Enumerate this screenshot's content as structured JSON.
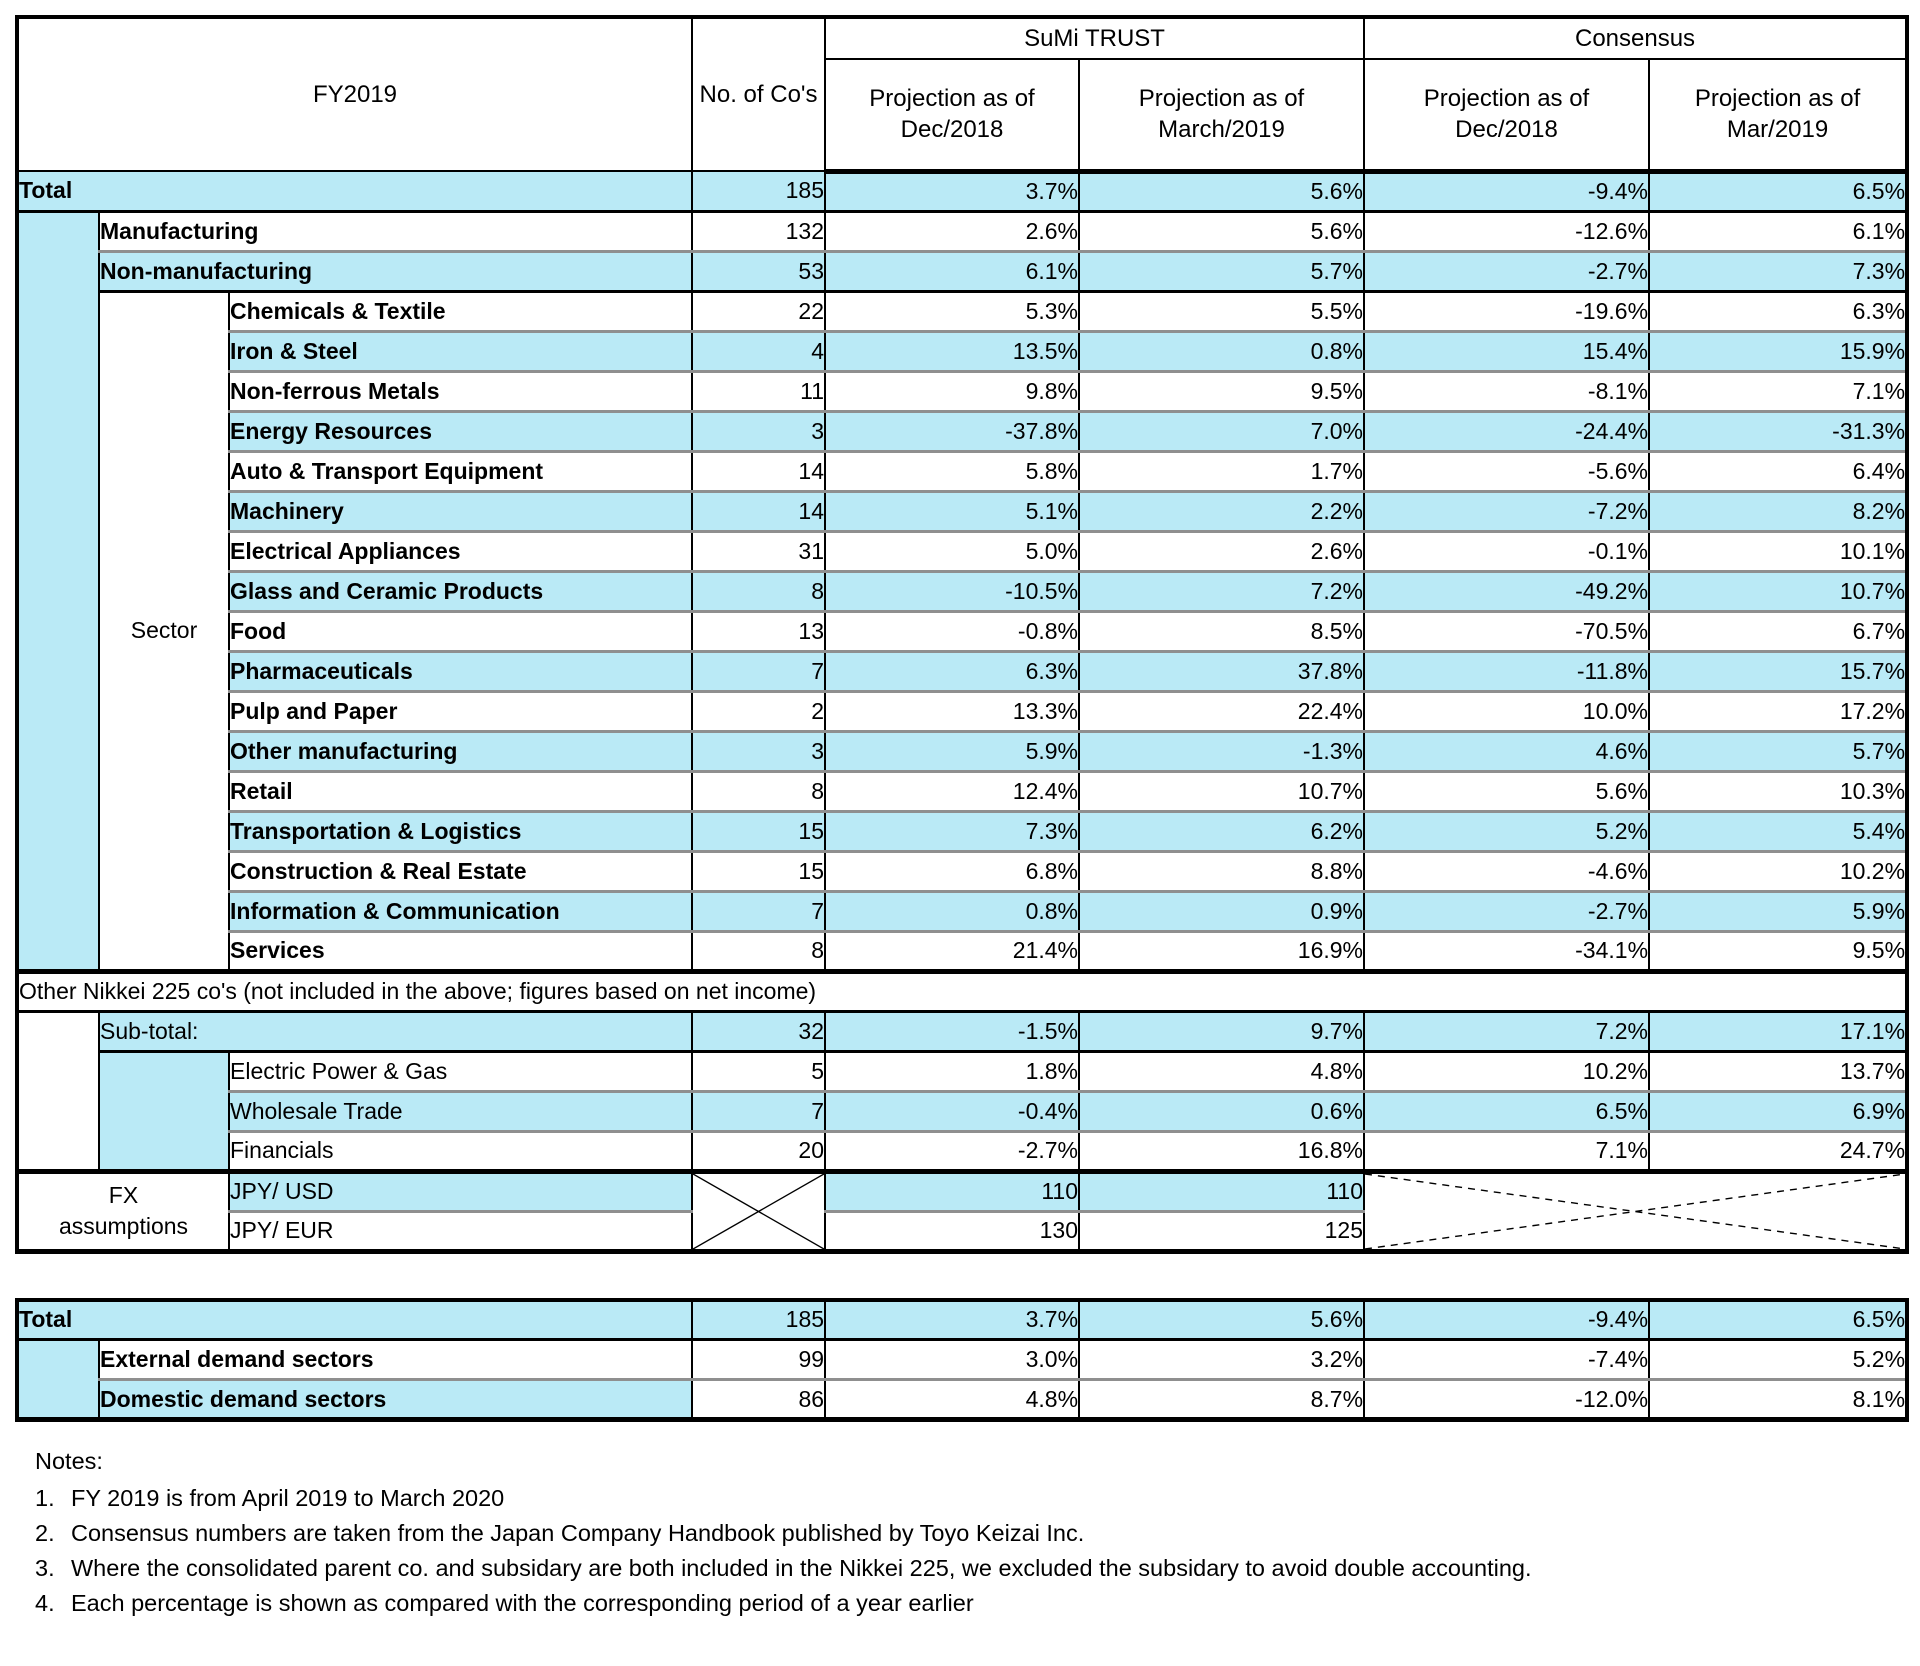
{
  "colors": {
    "row_shade_cyan": "#BAEAF6",
    "grid_black": "#000000",
    "separator_grey": "#8F8F8F"
  },
  "table1": {
    "title": "FY2019",
    "columns": {
      "no_of_cos": "No. of Co's",
      "group_sumi": "SuMi TRUST",
      "group_consensus": "Consensus",
      "sub": [
        "Projection as of Dec/2018",
        "Projection as of March/2019",
        "Projection as of Dec/2018",
        "Projection as of Mar/2019"
      ]
    },
    "sector_label": "Sector",
    "band": "Other Nikkei 225 co's (not included in the above; figures based on net income)",
    "rows": [
      {
        "label": "Total",
        "cos": "185",
        "v": [
          "3.7%",
          "5.6%",
          "-9.4%",
          "6.5%"
        ],
        "shade": true
      },
      {
        "label": "Manufacturing",
        "cos": "132",
        "v": [
          "2.6%",
          "5.6%",
          "-12.6%",
          "6.1%"
        ],
        "shade": false
      },
      {
        "label": "Non-manufacturing",
        "cos": "53",
        "v": [
          "6.1%",
          "5.7%",
          "-2.7%",
          "7.3%"
        ],
        "shade": true
      },
      {
        "label": "Chemicals & Textile",
        "cos": "22",
        "v": [
          "5.3%",
          "5.5%",
          "-19.6%",
          "6.3%"
        ],
        "shade": false
      },
      {
        "label": "Iron & Steel",
        "cos": "4",
        "v": [
          "13.5%",
          "0.8%",
          "15.4%",
          "15.9%"
        ],
        "shade": true
      },
      {
        "label": "Non-ferrous Metals",
        "cos": "11",
        "v": [
          "9.8%",
          "9.5%",
          "-8.1%",
          "7.1%"
        ],
        "shade": false
      },
      {
        "label": "Energy Resources",
        "cos": "3",
        "v": [
          "-37.8%",
          "7.0%",
          "-24.4%",
          "-31.3%"
        ],
        "shade": true
      },
      {
        "label": "Auto & Transport Equipment",
        "cos": "14",
        "v": [
          "5.8%",
          "1.7%",
          "-5.6%",
          "6.4%"
        ],
        "shade": false
      },
      {
        "label": "Machinery",
        "cos": "14",
        "v": [
          "5.1%",
          "2.2%",
          "-7.2%",
          "8.2%"
        ],
        "shade": true
      },
      {
        "label": "Electrical Appliances",
        "cos": "31",
        "v": [
          "5.0%",
          "2.6%",
          "-0.1%",
          "10.1%"
        ],
        "shade": false
      },
      {
        "label": "Glass and Ceramic Products",
        "cos": "8",
        "v": [
          "-10.5%",
          "7.2%",
          "-49.2%",
          "10.7%"
        ],
        "shade": true
      },
      {
        "label": "Food",
        "cos": "13",
        "v": [
          "-0.8%",
          "8.5%",
          "-70.5%",
          "6.7%"
        ],
        "shade": false
      },
      {
        "label": "Pharmaceuticals",
        "cos": "7",
        "v": [
          "6.3%",
          "37.8%",
          "-11.8%",
          "15.7%"
        ],
        "shade": true
      },
      {
        "label": "Pulp and Paper",
        "cos": "2",
        "v": [
          "13.3%",
          "22.4%",
          "10.0%",
          "17.2%"
        ],
        "shade": false
      },
      {
        "label": "Other manufacturing",
        "cos": "3",
        "v": [
          "5.9%",
          "-1.3%",
          "4.6%",
          "5.7%"
        ],
        "shade": true
      },
      {
        "label": "Retail",
        "cos": "8",
        "v": [
          "12.4%",
          "10.7%",
          "5.6%",
          "10.3%"
        ],
        "shade": false
      },
      {
        "label": "Transportation & Logistics",
        "cos": "15",
        "v": [
          "7.3%",
          "6.2%",
          "5.2%",
          "5.4%"
        ],
        "shade": true
      },
      {
        "label": "Construction & Real Estate",
        "cos": "15",
        "v": [
          "6.8%",
          "8.8%",
          "-4.6%",
          "10.2%"
        ],
        "shade": false
      },
      {
        "label": "Information & Communication",
        "cos": "7",
        "v": [
          "0.8%",
          "0.9%",
          "-2.7%",
          "5.9%"
        ],
        "shade": true
      },
      {
        "label": "Services",
        "cos": "8",
        "v": [
          "21.4%",
          "16.9%",
          "-34.1%",
          "9.5%"
        ],
        "shade": false
      },
      {
        "label": "Sub-total:",
        "cos": "32",
        "v": [
          "-1.5%",
          "9.7%",
          "7.2%",
          "17.1%"
        ],
        "shade": true
      },
      {
        "label": "Electric Power & Gas",
        "cos": "5",
        "v": [
          "1.8%",
          "4.8%",
          "10.2%",
          "13.7%"
        ],
        "shade": false
      },
      {
        "label": "Wholesale Trade",
        "cos": "7",
        "v": [
          "-0.4%",
          "0.6%",
          "6.5%",
          "6.9%"
        ],
        "shade": true
      },
      {
        "label": "Financials",
        "cos": "20",
        "v": [
          "-2.7%",
          "16.8%",
          "7.1%",
          "24.7%"
        ],
        "shade": false
      }
    ],
    "fx": {
      "label": "FX\nassumptions",
      "rows": [
        {
          "label": "JPY/ USD",
          "v": [
            "110",
            "110"
          ],
          "shade": true
        },
        {
          "label": "JPY/ EUR",
          "v": [
            "130",
            "125"
          ],
          "shade": false
        }
      ]
    }
  },
  "table2": {
    "rows": [
      {
        "label": "Total",
        "cos": "185",
        "v": [
          "3.7%",
          "5.6%",
          "-9.4%",
          "6.5%"
        ],
        "shade": true
      },
      {
        "label": "External demand sectors",
        "cos": "99",
        "v": [
          "3.0%",
          "3.2%",
          "-7.4%",
          "5.2%"
        ],
        "shade": false
      },
      {
        "label": "Domestic demand sectors",
        "cos": "86",
        "v": [
          "4.8%",
          "8.7%",
          "-12.0%",
          "8.1%"
        ],
        "shade": false,
        "label_shade": true
      }
    ]
  },
  "notes": {
    "title": "Notes:",
    "items": [
      {
        "num": "1.",
        "text": "FY 2019 is from April 2019 to March 2020"
      },
      {
        "num": "2.",
        "text": "Consensus numbers are taken from the Japan Company Handbook published by Toyo Keizai Inc."
      },
      {
        "num": "3.",
        "text": "Where the consolidated parent co. and subsidary are both included in the Nikkei 225, we excluded the subsidary to avoid double accounting."
      },
      {
        "num": "4.",
        "text": "Each percentage is shown as compared with the corresponding period of a year earlier"
      }
    ]
  }
}
